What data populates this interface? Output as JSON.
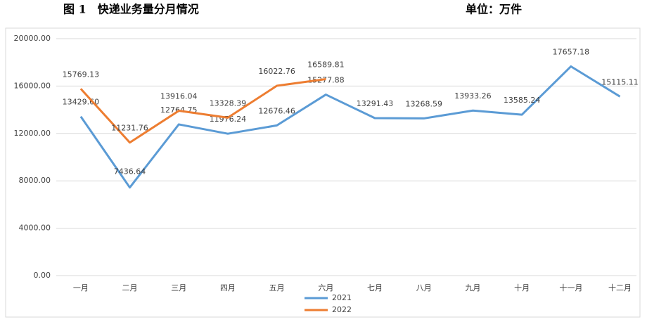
{
  "chart_data": {
    "type": "line",
    "title": "图 1　快递业务量分月情况",
    "subtitle": "单位：万件",
    "categories": [
      "一月",
      "二月",
      "三月",
      "四月",
      "五月",
      "六月",
      "七月",
      "八月",
      "九月",
      "十月",
      "十一月",
      "十二月"
    ],
    "series": [
      {
        "name": "2021",
        "color": "#5b9bd5",
        "values": [
          13429.6,
          7436.64,
          12764.75,
          11976.24,
          12676.46,
          15277.88,
          13291.43,
          13268.59,
          13933.26,
          13585.24,
          17657.18,
          15115.11
        ],
        "value_labels": [
          "13429.60",
          "7436.64",
          "12764.75",
          "11976.24",
          "12676.46",
          "15277.88",
          "13291.43",
          "13268.59",
          "13933.26",
          "13585.24",
          "17657.18",
          "15115.11"
        ]
      },
      {
        "name": "2022",
        "color": "#ed7d31",
        "values": [
          15769.13,
          11231.76,
          13916.04,
          13328.39,
          16022.76,
          16589.81,
          null,
          null,
          null,
          null,
          null,
          null
        ],
        "value_labels": [
          "15769.13",
          "11231.76",
          "13916.04",
          "13328.39",
          "16022.76",
          "16589.81",
          null,
          null,
          null,
          null,
          null,
          null
        ]
      }
    ],
    "ylim": [
      0,
      20000
    ],
    "yticks": [
      {
        "value": 0,
        "label": "0.00"
      },
      {
        "value": 4000,
        "label": "4000.00"
      },
      {
        "value": 8000,
        "label": "8000.00"
      },
      {
        "value": 12000,
        "label": "12000.00"
      },
      {
        "value": 16000,
        "label": "16000.00"
      },
      {
        "value": 20000,
        "label": "20000.00"
      }
    ],
    "grid": true
  }
}
